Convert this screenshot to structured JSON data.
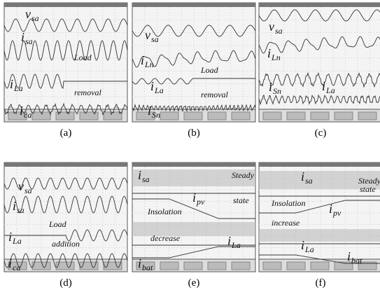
{
  "panels": [
    {
      "caption": "(a)",
      "signals": [
        {
          "main": "v",
          "sub": "sa"
        },
        {
          "main": "i",
          "sub": "sa"
        },
        {
          "main": "i",
          "sub": "La"
        },
        {
          "main": "i",
          "sub": "ca"
        }
      ],
      "notes": [
        "Load",
        "removal"
      ]
    },
    {
      "caption": "(b)",
      "signals": [
        {
          "main": "v",
          "sub": "sa"
        },
        {
          "main": "i",
          "sub": "Ln"
        },
        {
          "main": "i",
          "sub": "La"
        },
        {
          "main": "i",
          "sub": "Sn"
        }
      ],
      "notes": [
        "Load",
        "removal"
      ]
    },
    {
      "caption": "(c)",
      "signals": [
        {
          "main": "v",
          "sub": "sa"
        },
        {
          "main": "i",
          "sub": "Ln"
        },
        {
          "main": "i",
          "sub": "La"
        },
        {
          "main": "i",
          "sub": "Sn"
        }
      ],
      "notes": []
    },
    {
      "caption": "(d)",
      "signals": [
        {
          "main": "v",
          "sub": "sa"
        },
        {
          "main": "i",
          "sub": "sa"
        },
        {
          "main": "i",
          "sub": "La"
        },
        {
          "main": "i",
          "sub": "ca"
        }
      ],
      "notes": [
        "Load",
        "addition"
      ]
    },
    {
      "caption": "(e)",
      "signals": [
        {
          "main": "i",
          "sub": "sa"
        },
        {
          "main": "i",
          "sub": "pv"
        },
        {
          "main": "i",
          "sub": "La"
        },
        {
          "main": "i",
          "sub": "bat"
        }
      ],
      "notes": [
        "Steady",
        "state",
        "Insolation",
        "decrease"
      ]
    },
    {
      "caption": "(f)",
      "signals": [
        {
          "main": "i",
          "sub": "sa"
        },
        {
          "main": "i",
          "sub": "pv"
        },
        {
          "main": "i",
          "sub": "La"
        },
        {
          "main": "i",
          "sub": "bat"
        }
      ],
      "notes": [
        "Steady",
        "state",
        "Insolation",
        "increase"
      ]
    }
  ]
}
